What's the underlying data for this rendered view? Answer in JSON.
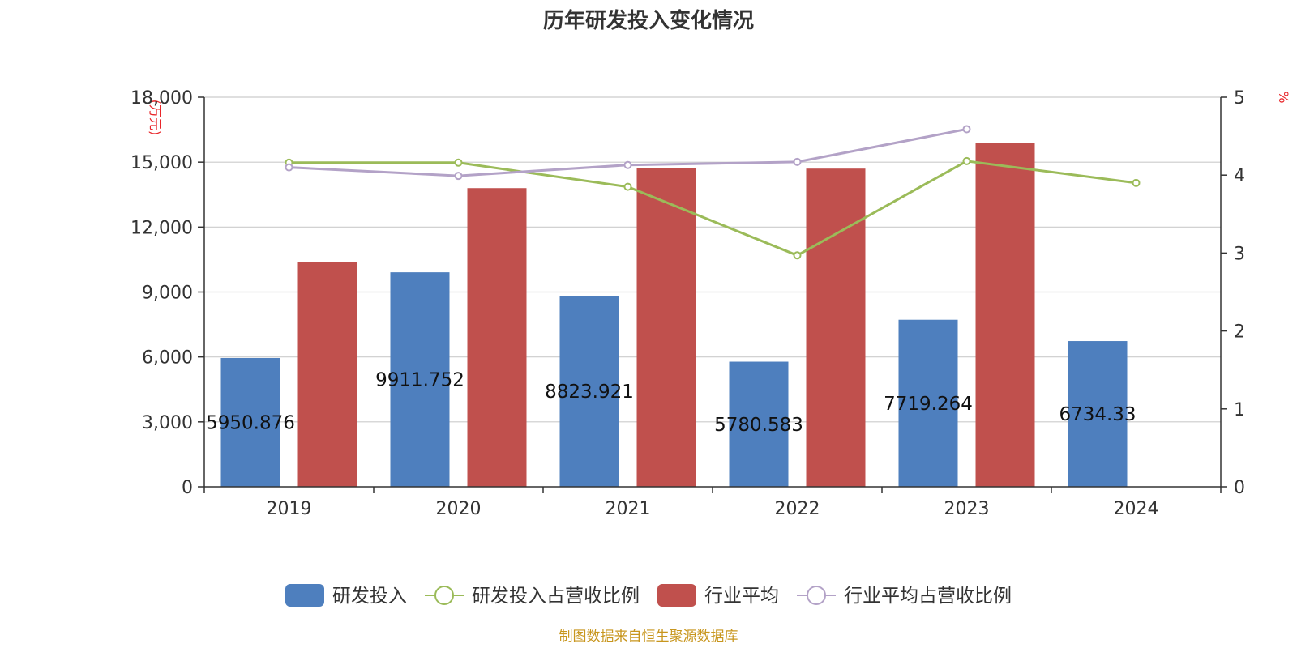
{
  "chart_data": {
    "type": "bar",
    "title": "历年研发投入变化情况",
    "categories": [
      "2019",
      "2020",
      "2021",
      "2022",
      "2023",
      "2024"
    ],
    "y_left": {
      "unit": "(万元)",
      "ylim": [
        0,
        18000
      ],
      "ticks": [
        "0",
        "3,000",
        "6,000",
        "9,000",
        "12,000",
        "15,000",
        "18,000"
      ]
    },
    "y_right": {
      "unit": "%",
      "ylim": [
        0,
        5
      ],
      "ticks": [
        "0",
        "1",
        "2",
        "3",
        "4",
        "5"
      ]
    },
    "series": [
      {
        "name": "研发投入",
        "kind": "bar",
        "axis": "left",
        "color": "#4e7fbe",
        "values": [
          5950.876,
          9911.752,
          8823.921,
          5780.583,
          7719.264,
          6734.33
        ],
        "labels": [
          "5950.876",
          "9911.752",
          "8823.921",
          "5780.583",
          "7719.264",
          "6734.33"
        ]
      },
      {
        "name": "研发投入占营收比例",
        "kind": "line",
        "axis": "right",
        "color": "#9bbb59",
        "values": [
          4.16,
          4.16,
          3.85,
          2.97,
          4.18,
          3.9
        ]
      },
      {
        "name": "行业平均",
        "kind": "bar",
        "axis": "left",
        "color": "#c0504d",
        "values": [
          10380,
          13800,
          14730,
          14700,
          15900,
          null
        ]
      },
      {
        "name": "行业平均占营收比例",
        "kind": "line",
        "axis": "right",
        "color": "#b3a2c7",
        "values": [
          4.1,
          3.99,
          4.13,
          4.17,
          4.59,
          null
        ]
      }
    ],
    "grid": true,
    "legend_position": "bottom"
  },
  "footer": {
    "source": "制图数据来自恒生聚源数据库"
  }
}
